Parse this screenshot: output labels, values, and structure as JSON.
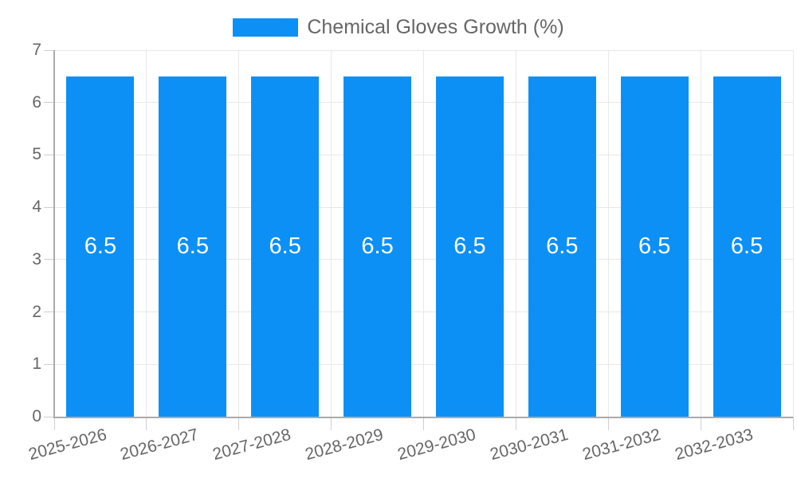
{
  "chart_data": {
    "type": "bar",
    "title": "Chemical Gloves Growth (%)",
    "categories": [
      "2025-2026",
      "2026-2027",
      "2027-2028",
      "2028-2029",
      "2029-2030",
      "2030-2031",
      "2031-2032",
      "2032-2033"
    ],
    "values": [
      6.5,
      6.5,
      6.5,
      6.5,
      6.5,
      6.5,
      6.5,
      6.5
    ],
    "series": [
      {
        "name": "Chemical Gloves Growth (%)",
        "values": [
          6.5,
          6.5,
          6.5,
          6.5,
          6.5,
          6.5,
          6.5,
          6.5
        ]
      }
    ],
    "yticks": [
      0,
      1,
      2,
      3,
      4,
      5,
      6,
      7
    ],
    "ylim": [
      0,
      7
    ],
    "xlabel": "",
    "ylabel": "",
    "grid": true,
    "legend_position": "top-center",
    "bar_labels_shown": true,
    "colors": {
      "bar": "#0d90f5",
      "bar_label": "#ffffff",
      "grid": "#e8e8e8",
      "tick": "#cfcfcf",
      "axis": "#aaaaaa",
      "text": "#666666"
    }
  }
}
